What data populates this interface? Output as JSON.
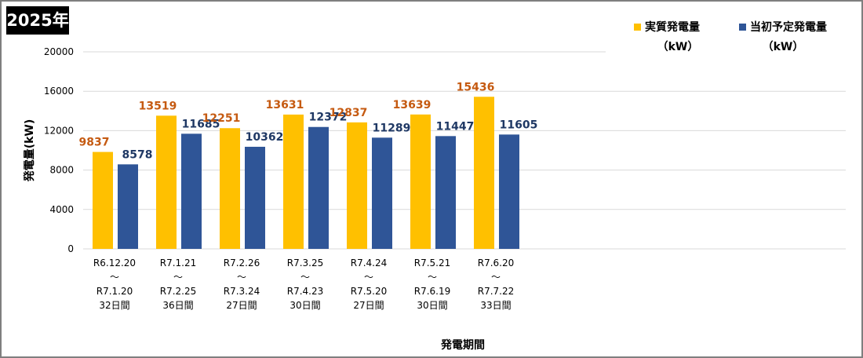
{
  "badge": {
    "year": "2025年"
  },
  "chart_data": {
    "type": "bar",
    "categories": [
      [
        "R6.12.20",
        "～",
        "R7.1.20",
        "32日間"
      ],
      [
        "R7.1.21",
        "～",
        "R7.2.25",
        "36日間"
      ],
      [
        "R7.2.26",
        "～",
        "R7.3.24",
        "27日間"
      ],
      [
        "R7.3.25",
        "～",
        "R7.4.23",
        "30日間"
      ],
      [
        "R7.4.24",
        "～",
        "R7.5.20",
        "27日間"
      ],
      [
        "R7.5.21",
        "～",
        "R7.6.19",
        "30日間"
      ],
      [
        "R7.6.20",
        "～",
        "R7.7.22",
        "33日間"
      ]
    ],
    "series": [
      {
        "name": "実質発電量",
        "unit": "（kW）",
        "color": "#ffc000",
        "label_color": "#c55a11",
        "values": [
          9837,
          13519,
          12251,
          13631,
          12837,
          13639,
          15436
        ]
      },
      {
        "name": "当初予定発電量",
        "unit": "（kW）",
        "color": "#2f5597",
        "label_color": "#1f3864",
        "values": [
          8578,
          11685,
          10362,
          12372,
          11289,
          11447,
          11605
        ]
      }
    ],
    "ylabel": "発電量(kW)",
    "xlabel": "発電期間",
    "ylim": [
      0,
      20000
    ],
    "yticks": [
      0,
      4000,
      8000,
      12000,
      16000,
      20000
    ],
    "grid": true,
    "legend": "top-right"
  }
}
